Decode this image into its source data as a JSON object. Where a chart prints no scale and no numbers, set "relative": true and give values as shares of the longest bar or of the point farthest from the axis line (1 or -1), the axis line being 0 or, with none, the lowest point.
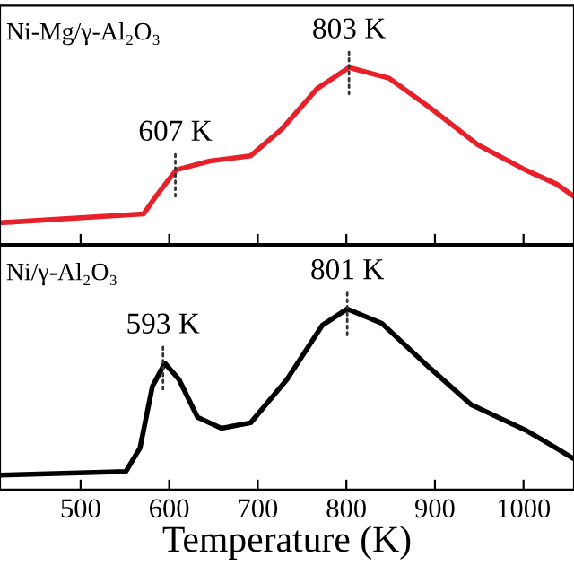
{
  "chart_data": [
    {
      "type": "line",
      "title": "Ni-Mg/γ-Al₂O₃",
      "relative": true,
      "xlim": [
        409,
        1057
      ],
      "xticks": [
        500,
        600,
        700,
        800,
        900,
        1000
      ],
      "tick_labels": false,
      "legend": false,
      "grid": false,
      "series": [
        {
          "color": "#e8202a",
          "x": [
            409,
            571,
            585,
            608,
            646,
            692,
            727,
            767,
            803,
            848,
            895,
            949,
            1002,
            1037,
            1057
          ],
          "values": [
            0.12,
            0.17,
            0.27,
            0.42,
            0.47,
            0.5,
            0.65,
            0.88,
            1.0,
            0.94,
            0.77,
            0.56,
            0.42,
            0.34,
            0.27
          ]
        }
      ],
      "annotations": [
        {
          "text": "607 K",
          "x": 607,
          "y": 0.42
        },
        {
          "text": "803 K",
          "x": 803,
          "y": 1.0
        }
      ]
    },
    {
      "type": "line",
      "title": "Ni/γ-Al₂O₃",
      "xlabel": "Temperature (K)",
      "relative": true,
      "xlim": [
        409,
        1057
      ],
      "xticks": [
        500,
        600,
        700,
        800,
        900,
        1000
      ],
      "tick_labels": "x",
      "legend": false,
      "grid": false,
      "series": [
        {
          "color": "#000000",
          "x": [
            409,
            551,
            567,
            581,
            595,
            611,
            632,
            659,
            692,
            733,
            773,
            801,
            840,
            895,
            941,
            1002,
            1037,
            1057
          ],
          "values": [
            0.08,
            0.1,
            0.23,
            0.57,
            0.7,
            0.61,
            0.4,
            0.34,
            0.37,
            0.61,
            0.91,
            1.0,
            0.92,
            0.67,
            0.47,
            0.33,
            0.23,
            0.17
          ]
        }
      ],
      "annotations": [
        {
          "text": "593 K",
          "x": 593,
          "y": 0.7
        },
        {
          "text": "801 K",
          "x": 801,
          "y": 1.0
        }
      ]
    }
  ]
}
